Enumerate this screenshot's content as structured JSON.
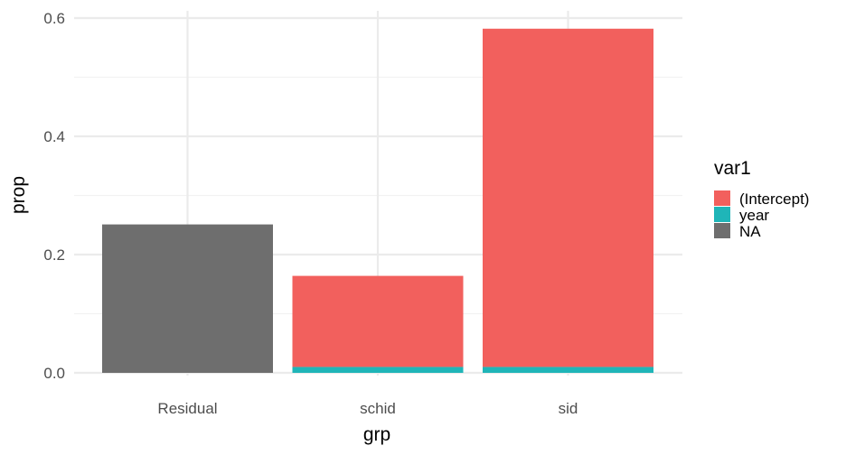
{
  "chart_data": {
    "type": "bar",
    "stacked": true,
    "categories": [
      "Residual",
      "schid",
      "sid"
    ],
    "series": [
      {
        "name": "NA",
        "color": "#6e6e6e",
        "values": [
          0.251,
          0,
          0
        ]
      },
      {
        "name": "year",
        "color": "#1fb5b8",
        "values": [
          0,
          0.01,
          0.01
        ]
      },
      {
        "name": "(Intercept)",
        "color": "#f2605d",
        "values": [
          0,
          0.154,
          0.572
        ]
      }
    ],
    "xlabel": "grp",
    "ylabel": "prop",
    "ylim": [
      0,
      0.6
    ],
    "yticks": [
      "0.0",
      "0.2",
      "0.4",
      "0.6"
    ],
    "grid": true,
    "legend": {
      "title": "var1",
      "position": "right",
      "entries": [
        "(Intercept)",
        "year",
        "NA"
      ]
    }
  }
}
